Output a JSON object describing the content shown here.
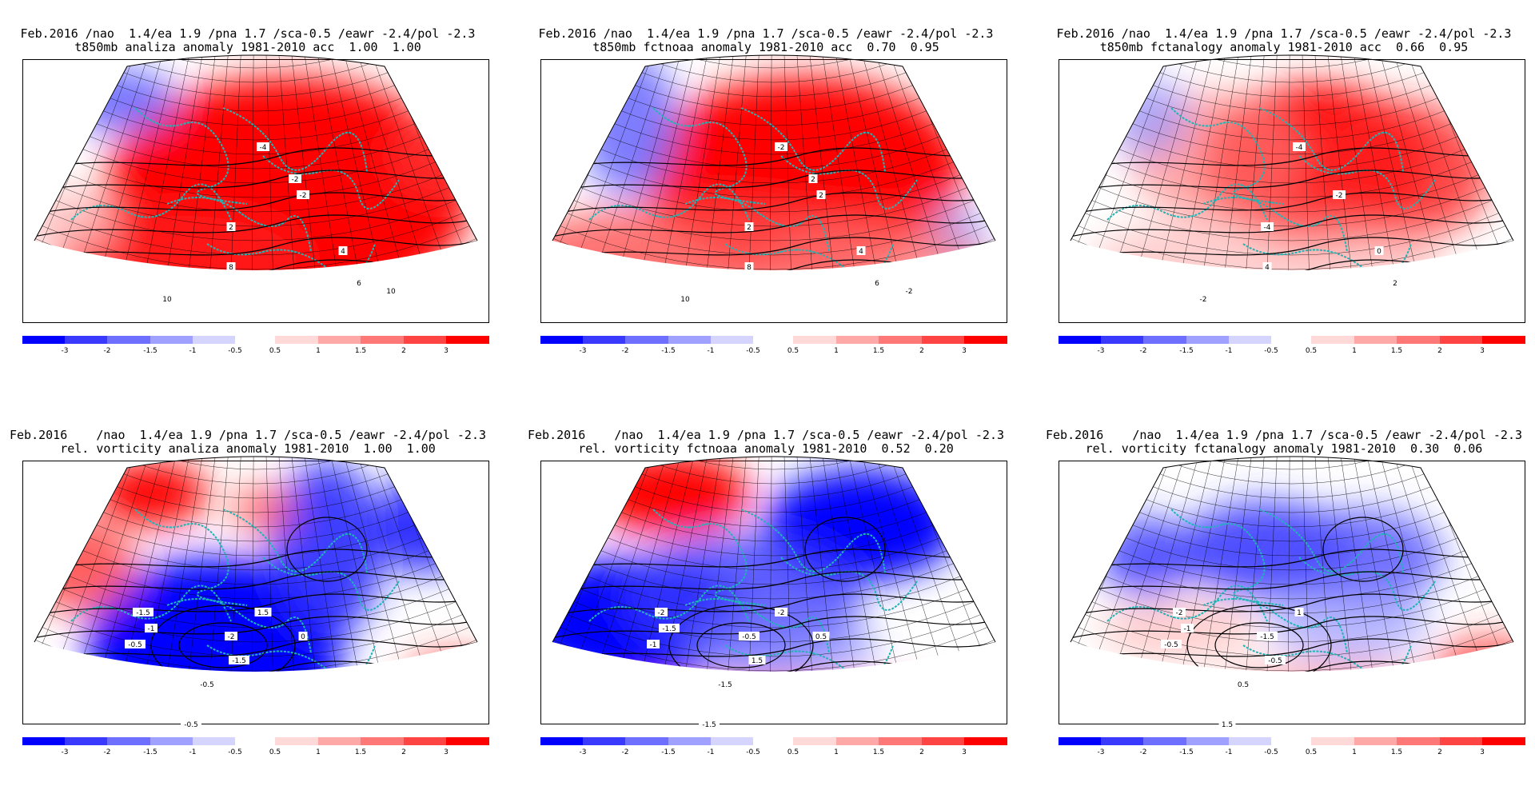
{
  "panels": [
    {
      "id": "p1",
      "title1": "Feb.2016 /nao  1.4/ea 1.9 /pna 1.7 /sca-0.5 /eawr -2.4/pol -2.3",
      "title2": "t850mb analiza anomaly 1981-2010 acc  1.00  1.00",
      "field": "t850",
      "contour_labels": [
        "-4",
        "-2",
        "2",
        "4",
        "6",
        "8",
        "10",
        "10",
        "-2"
      ]
    },
    {
      "id": "p2",
      "title1": "Feb.2016 /nao  1.4/ea 1.9 /pna 1.7 /sca-0.5 /eawr -2.4/pol -2.3",
      "title2": "t850mb fctnoaa anomaly 1981-2010 acc  0.70  0.95",
      "field": "t850",
      "contour_labels": [
        "-2",
        "2",
        "2",
        "4",
        "6",
        "8",
        "10",
        "-2",
        "2"
      ]
    },
    {
      "id": "p3",
      "title1": "Feb.2016 /nao  1.4/ea 1.9 /pna 1.7 /sca-0.5 /eawr -2.4/pol -2.3",
      "title2": "t850mb fctanalogy anomaly 1981-2010 acc  0.66  0.95",
      "field": "t850",
      "contour_labels": [
        "-4",
        "-2",
        "-4",
        "0",
        "2",
        "4",
        "-2"
      ]
    },
    {
      "id": "p4",
      "title1": "Feb.2016    /nao  1.4/ea 1.9 /pna 1.7 /sca-0.5 /eawr -2.4/pol -2.3",
      "title2": "rel. vorticity analiza anomaly 1981-2010  1.00  1.00",
      "field": "vort",
      "contour_labels": [
        "-1.5",
        "-1",
        "-0.5",
        "-2",
        "-1.5",
        "-0.5",
        "1.5",
        "-0.5",
        "0"
      ]
    },
    {
      "id": "p5",
      "title1": "Feb.2016    /nao  1.4/ea 1.9 /pna 1.7 /sca-0.5 /eawr -2.4/pol -2.3",
      "title2": "rel. vorticity fctnoaa anomaly 1981-2010  0.52  0.20",
      "field": "vort",
      "contour_labels": [
        "-2",
        "-1.5",
        "-1",
        "-0.5",
        "1.5",
        "-1.5",
        "-2",
        "-1.5",
        "0.5"
      ]
    },
    {
      "id": "p6",
      "title1": "Feb.2016    /nao  1.4/ea 1.9 /pna 1.7 /sca-0.5 /eawr -2.4/pol -2.3",
      "title2": "rel. vorticity fctanalogy anomaly 1981-2010  0.30  0.06",
      "field": "vort",
      "contour_labels": [
        "-2",
        "-1",
        "-0.5",
        "-1.5",
        "-0.5",
        "0.5",
        "1",
        "1.5"
      ]
    }
  ],
  "colorbar": {
    "neg_labels": [
      "-3",
      "-2",
      "-1.5",
      "-1",
      "-0.5"
    ],
    "pos_labels": [
      "0.5",
      "1",
      "1.5",
      "2",
      "3"
    ],
    "neg_colors": [
      "#0000ff",
      "#3a3aff",
      "#6e6eff",
      "#a0a0ff",
      "#d4d4ff"
    ],
    "pos_colors": [
      "#ffd8d8",
      "#ffa8a8",
      "#ff7878",
      "#ff4444",
      "#ff0000"
    ]
  }
}
